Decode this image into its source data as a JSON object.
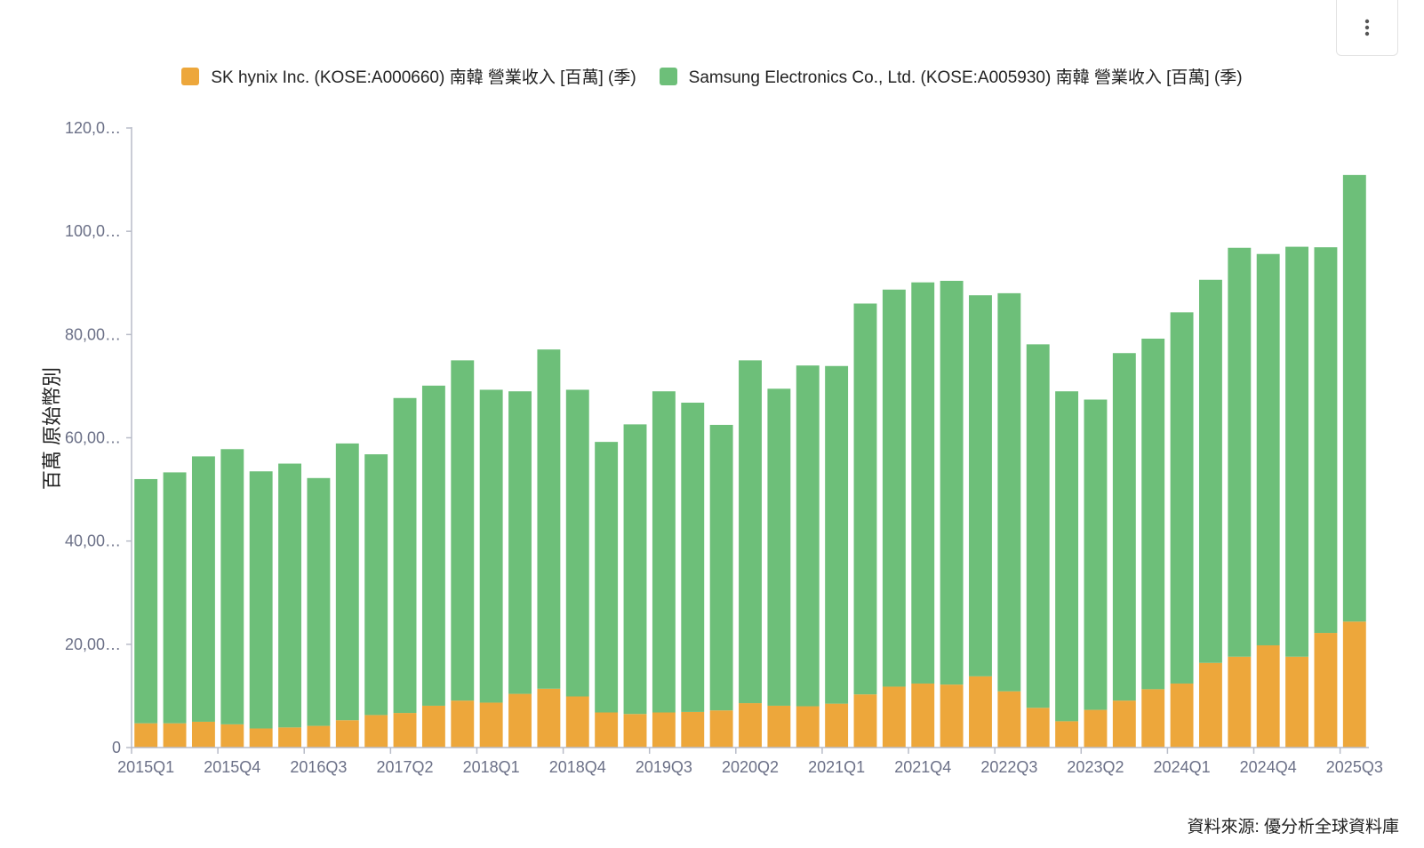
{
  "menu": {
    "icon": "more-vertical-icon"
  },
  "colors": {
    "sk": "#EDA73B",
    "samsung": "#6DBF79",
    "axis": "#b8bcc8",
    "tick_text": "#6b7087",
    "label_text": "#222222"
  },
  "source_text": "資料來源: 優分析全球資料庫",
  "chart_data": {
    "type": "bar",
    "stacked": true,
    "ylabel": "百萬 原始幣別",
    "ylim": [
      0,
      120000
    ],
    "yticks": [
      0,
      20000,
      40000,
      60000,
      80000,
      100000,
      120000
    ],
    "ytick_labels": [
      "0",
      "20,00…",
      "40,00…",
      "60,00…",
      "80,00…",
      "100,0…",
      "120,0…"
    ],
    "categories": [
      "2015Q1",
      "2015Q2",
      "2015Q3",
      "2015Q4",
      "2016Q1",
      "2016Q2",
      "2016Q3",
      "2016Q4",
      "2017Q1",
      "2017Q2",
      "2017Q3",
      "2017Q4",
      "2018Q1",
      "2018Q2",
      "2018Q3",
      "2018Q4",
      "2019Q1",
      "2019Q2",
      "2019Q3",
      "2019Q4",
      "2020Q1",
      "2020Q2",
      "2020Q3",
      "2020Q4",
      "2021Q1",
      "2021Q2",
      "2021Q3",
      "2021Q4",
      "2022Q1",
      "2022Q2",
      "2022Q3",
      "2022Q4",
      "2023Q1",
      "2023Q2",
      "2023Q3",
      "2023Q4",
      "2024Q1",
      "2024Q2",
      "2024Q3",
      "2024Q4",
      "2025Q1",
      "2025Q2",
      "2025Q3"
    ],
    "xtick_labels": [
      "2015Q1",
      "2015Q4",
      "2016Q3",
      "2017Q2",
      "2018Q1",
      "2018Q4",
      "2019Q3",
      "2020Q2",
      "2021Q1",
      "2021Q4",
      "2022Q3",
      "2023Q2",
      "2024Q1",
      "2024Q4",
      "2025Q3"
    ],
    "series": [
      {
        "name": "SK hynix Inc. (KOSE:A000660) 南韓 營業收入 [百萬] (季)",
        "values": [
          4700,
          4700,
          5000,
          4500,
          3700,
          3900,
          4200,
          5300,
          6300,
          6700,
          8100,
          9100,
          8700,
          10400,
          11400,
          9900,
          6800,
          6500,
          6800,
          6900,
          7200,
          8600,
          8100,
          8000,
          8500,
          10300,
          11800,
          12400,
          12200,
          13800,
          10900,
          7700,
          5100,
          7300,
          9100,
          11300,
          12400,
          16400,
          17600,
          19800,
          17600,
          22200,
          24400
        ]
      },
      {
        "name": "Samsung Electronics Co., Ltd. (KOSE:A005930) 南韓 營業收入 [百萬] (季)",
        "values": [
          47300,
          48600,
          51400,
          53300,
          49800,
          51100,
          48000,
          53600,
          50500,
          61000,
          62000,
          65900,
          60600,
          58600,
          65700,
          59400,
          52400,
          56100,
          62200,
          59900,
          55300,
          66400,
          61400,
          66000,
          65400,
          75700,
          76900,
          77700,
          78200,
          73800,
          77100,
          70400,
          63900,
          60100,
          67300,
          67900,
          71900,
          74200,
          79200,
          75800,
          79400,
          74700,
          86500
        ]
      }
    ]
  }
}
